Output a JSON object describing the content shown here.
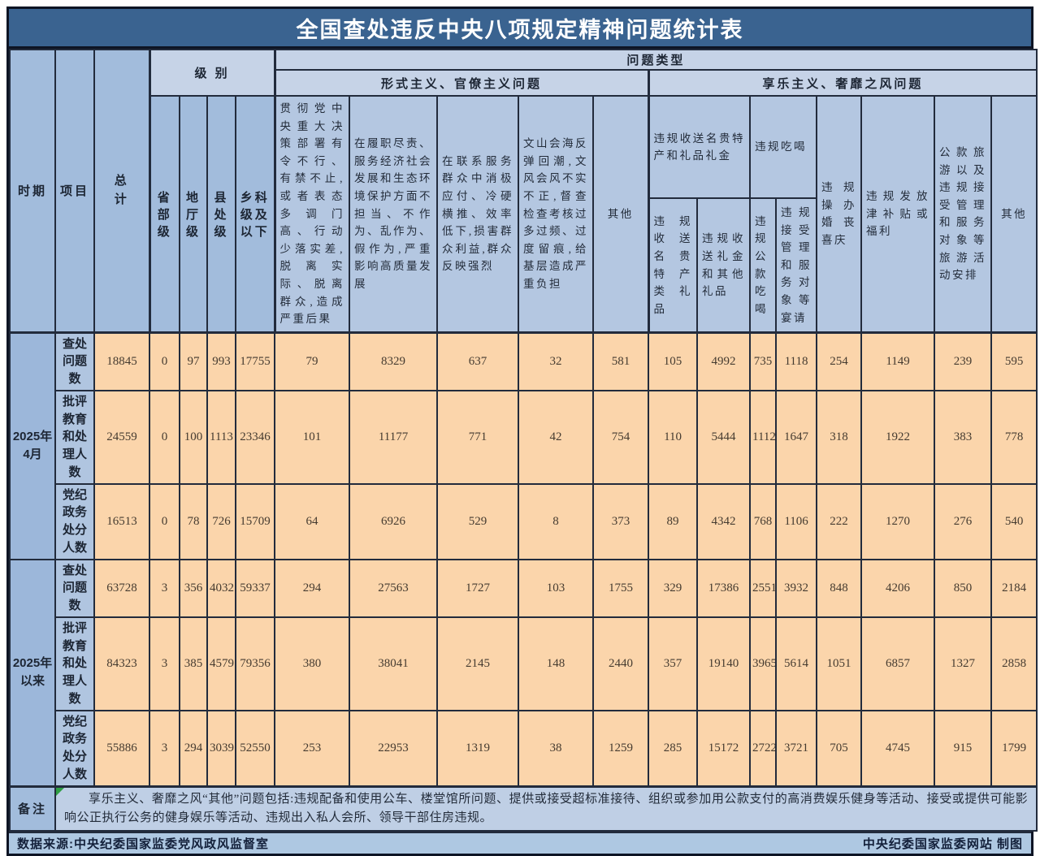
{
  "title": "全国查处违反中央八项规定精神问题统计表",
  "chart_data": {
    "type": "table",
    "header": {
      "period": "时期",
      "item": "项目",
      "total": "总计",
      "level_group": "级 别",
      "problem_type_group": "问题类型",
      "levels": [
        "省部级",
        "地厅级",
        "县处级",
        "乡科级及以下"
      ],
      "formalism_group": "形式主义、官僚主义问题",
      "formalism_cols": [
        "贯彻党中央重大决策部署有令不行、有禁不止,或者表态多调门高、行动少落实差,脱离实际、脱离群众,造成严重后果",
        "在履职尽责、服务经济社会发展和生态环境保护方面不担当、不作为、乱作为、假作为,严重影响高质量发展",
        "在联系服务群众中消极应付、冷硬横推、效率低下,损害群众利益,群众反映强烈",
        "文山会海反弹回潮,文风会风不实不正,督查检查考核过多过频、过度留痕,给基层造成严重负担",
        "其他"
      ],
      "hedonism_group": "享乐主义、奢靡之风问题",
      "gift_group": "违规收送名贵特产和礼品礼金",
      "gift_cols": [
        "违规收送名贵特产类礼品",
        "违规收送礼金和其他礼品"
      ],
      "dining_group": "违规吃喝",
      "dining_cols": [
        "违规公款吃喝",
        "违规接受管理和服务对象等宴请"
      ],
      "single_cols": [
        "违规操办婚丧喜庆",
        "违规发放津补贴或福利",
        "公款旅游以及违规接受管理和服务对象等旅游活动安排",
        "其他"
      ]
    },
    "periods": [
      {
        "label": "2025年4月",
        "rows": [
          {
            "item": "查处问题数",
            "values": [
              18845,
              0,
              97,
              993,
              17755,
              79,
              8329,
              637,
              32,
              581,
              105,
              4992,
              735,
              1118,
              254,
              1149,
              239,
              595
            ]
          },
          {
            "item": "批评教育和处理人数",
            "values": [
              24559,
              0,
              100,
              1113,
              23346,
              101,
              11177,
              771,
              42,
              754,
              110,
              5444,
              1112,
              1647,
              318,
              1922,
              383,
              778
            ]
          },
          {
            "item": "党纪政务处分人数",
            "values": [
              16513,
              0,
              78,
              726,
              15709,
              64,
              6926,
              529,
              8,
              373,
              89,
              4342,
              768,
              1106,
              222,
              1270,
              276,
              540
            ]
          }
        ]
      },
      {
        "label": "2025年以来",
        "rows": [
          {
            "item": "查处问题数",
            "values": [
              63728,
              3,
              356,
              4032,
              59337,
              294,
              27563,
              1727,
              103,
              1755,
              329,
              17386,
              2551,
              3932,
              848,
              4206,
              850,
              2184
            ]
          },
          {
            "item": "批评教育和处理人数",
            "values": [
              84323,
              3,
              385,
              4579,
              79356,
              380,
              38041,
              2145,
              148,
              2440,
              357,
              19140,
              3965,
              5614,
              1051,
              6857,
              1327,
              2858
            ]
          },
          {
            "item": "党纪政务处分人数",
            "values": [
              55886,
              3,
              294,
              3039,
              52550,
              253,
              22953,
              1319,
              38,
              1259,
              285,
              15172,
              2722,
              3721,
              705,
              4745,
              915,
              1799
            ]
          }
        ]
      }
    ]
  },
  "remark": {
    "label": "备注",
    "text": "享乐主义、奢靡之风“其他”问题包括:违规配备和使用公车、楼堂馆所问题、提供或接受超标准接待、组织或参加用公款支付的高消费娱乐健身等活动、接受或提供可能影响公正执行公务的健身娱乐等活动、违规出入私人会所、领导干部住房违规。"
  },
  "footer": {
    "left": "数据来源:中央纪委国家监委党风政风监督室",
    "right": "中央纪委国家监委网站 制图"
  }
}
